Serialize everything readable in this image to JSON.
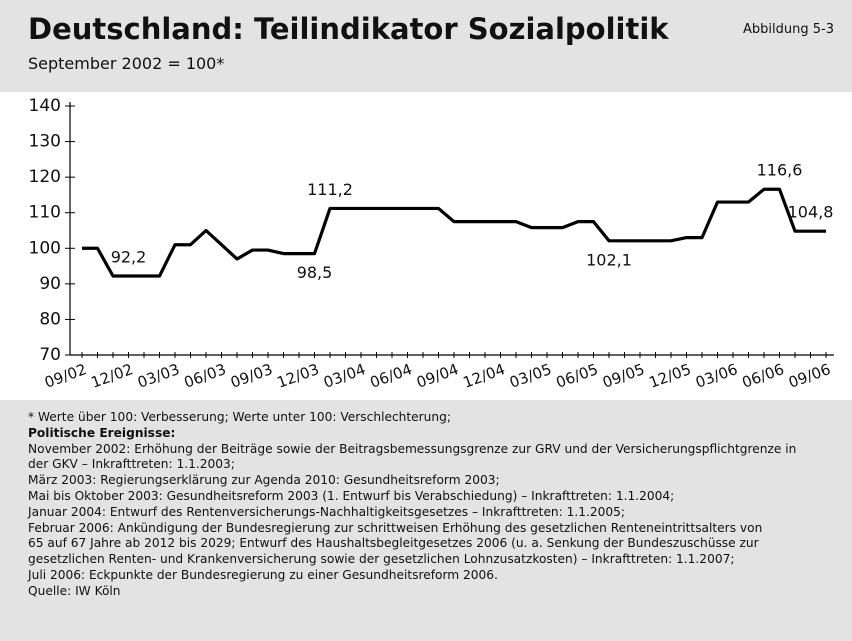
{
  "chart_data": {
    "type": "line",
    "title": "Deutschland: Teilindikator Sozialpolitik",
    "subtitle": "September 2002 = 100*",
    "figure_label": "Abbildung 5-3",
    "categories": [
      "09/02",
      null,
      null,
      "12/02",
      null,
      null,
      "03/03",
      null,
      null,
      "06/03",
      null,
      null,
      "09/03",
      null,
      null,
      "12/03",
      null,
      null,
      "03/04",
      null,
      null,
      "06/04",
      null,
      null,
      "09/04",
      null,
      null,
      "12/04",
      null,
      null,
      "03/05",
      null,
      null,
      "06/05",
      null,
      null,
      "09/05",
      null,
      null,
      "12/05",
      null,
      null,
      "03/06",
      null,
      null,
      "06/06",
      null,
      null,
      "09/06"
    ],
    "series": [
      {
        "name": "Teilindikator Sozialpolitik",
        "color": "#000000",
        "values": [
          100,
          100,
          92.2,
          92.2,
          92.2,
          92.2,
          101,
          101,
          105,
          101,
          97,
          99.5,
          99.5,
          98.5,
          98.5,
          98.5,
          111.2,
          111.2,
          111.2,
          111.2,
          111.2,
          111.2,
          111.2,
          111.2,
          107.5,
          107.5,
          107.5,
          107.5,
          107.5,
          105.8,
          105.8,
          105.8,
          107.5,
          107.5,
          102.1,
          102.1,
          102.1,
          102.1,
          102.1,
          103,
          103,
          113,
          113,
          113,
          116.6,
          116.6,
          104.8,
          104.8,
          104.8
        ],
        "value_labels": [
          null,
          null,
          null,
          "92,2",
          null,
          null,
          null,
          null,
          null,
          null,
          null,
          null,
          null,
          null,
          null,
          "98,5",
          "111,2",
          null,
          null,
          null,
          null,
          null,
          null,
          null,
          null,
          null,
          null,
          null,
          null,
          null,
          null,
          null,
          null,
          null,
          "102,1",
          null,
          null,
          null,
          null,
          null,
          null,
          null,
          null,
          null,
          null,
          "116,6",
          null,
          "104,8",
          null
        ]
      }
    ],
    "ylim": [
      70,
      140
    ],
    "yticks": [
      70,
      80,
      90,
      100,
      110,
      120,
      130,
      140
    ],
    "grid": false,
    "notes": [
      "* Werte über 100: Verbesserung; Werte unter 100: Verschlechterung;",
      "Politische Ereignisse:",
      "November 2002: Erhöhung der Beiträge sowie der Beitragsbemessungsgrenze zur GRV und der Versicherungspflichtgrenze in",
      "der GKV – Inkrafttreten: 1.1.2003;",
      "März 2003: Regierungserklärung zur Agenda 2010: Gesundheitsreform 2003;",
      "Mai bis Oktober 2003: Gesundheitsreform 2003 (1. Entwurf bis Verabschiedung) – Inkrafttreten: 1.1.2004;",
      "Januar 2004: Entwurf des Rentenversicherungs-Nachhaltigkeitsgesetzes – Inkrafttreten: 1.1.2005;",
      "Februar 2006: Ankündigung der Bundesregierung zur schrittweisen Erhöhung des gesetzlichen Renteneintrittsalters von",
      "65 auf 67 Jahre ab 2012 bis 2029; Entwurf des Haushaltsbegleitgesetzes 2006 (u. a. Senkung der Bundeszuschüsse zur",
      "gesetzlichen Renten- und Krankenversicherung sowie der gesetzlichen Lohnzusatzkosten) – Inkrafttreten: 1.1.2007;",
      "Juli 2006: Eckpunkte der Bundesregierung zu einer Gesundheitsreform 2006.",
      "Quelle: IW Köln"
    ]
  }
}
